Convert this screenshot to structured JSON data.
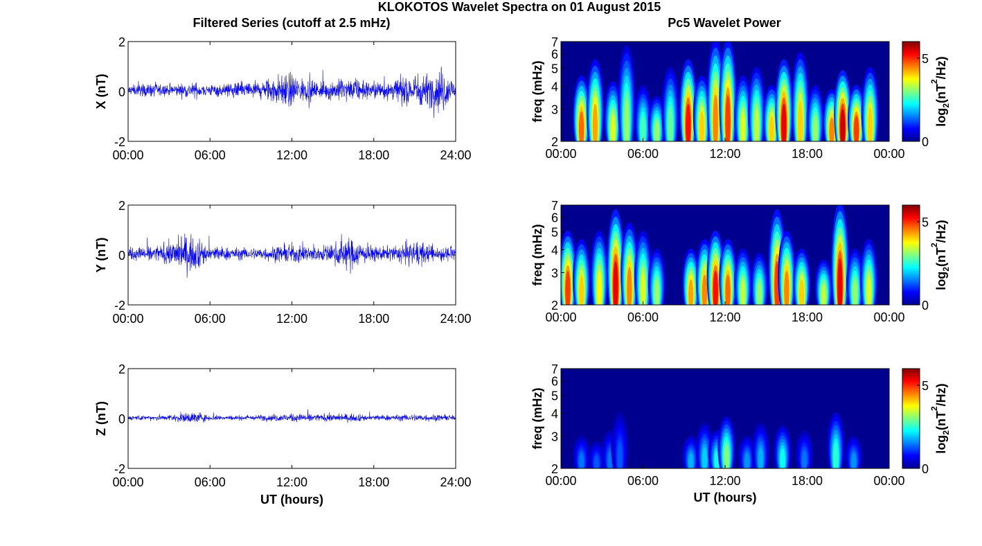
{
  "figure": {
    "title": "KLOKOTOS Wavelet Spectra on 01 August 2015",
    "left_title": "Filtered Series (cutoff at 2.5 mHz)",
    "right_title": "Pc5 Wavelet Power",
    "x_axis_label": "UT (hours)",
    "freq_label": "freq (mHz)",
    "colorbar_label_base": "log",
    "colorbar_label_sub": "2",
    "colorbar_label_unit": "(nT",
    "colorbar_label_sup": "2",
    "colorbar_label_tail": "/Hz)"
  },
  "colors": {
    "series_line": "#0000ff",
    "wavelet_background": "#00008f",
    "colormap": [
      "#00008f",
      "#0000ff",
      "#0080ff",
      "#00ffff",
      "#80ff80",
      "#ffff00",
      "#ff8000",
      "#ff0000",
      "#800000"
    ]
  },
  "chart_data": [
    {
      "type": "line",
      "panel": "X",
      "ylabel": "X (nT)",
      "xlabel": "",
      "xlim": [
        0,
        24
      ],
      "ylim": [
        -2,
        2
      ],
      "xticks": [
        "00:00",
        "06:00",
        "12:00",
        "18:00",
        "24:00"
      ],
      "yticks": [
        "-2",
        "0",
        "2"
      ],
      "series": [
        {
          "envelope_hours": [
            0,
            1,
            2,
            3,
            4,
            5,
            6,
            7,
            8,
            9,
            10,
            11,
            12,
            13,
            14,
            15,
            16,
            17,
            18,
            19,
            20,
            21,
            22,
            23,
            24
          ],
          "amplitude_nT": [
            0.25,
            0.3,
            0.35,
            0.3,
            0.35,
            0.4,
            0.3,
            0.35,
            0.4,
            0.45,
            0.55,
            0.8,
            0.85,
            0.55,
            0.45,
            0.5,
            0.6,
            0.5,
            0.45,
            0.55,
            0.6,
            0.9,
            0.8,
            1.2,
            0.4
          ],
          "offset_nT": 0.05
        }
      ]
    },
    {
      "type": "line",
      "panel": "Y",
      "ylabel": "Y (nT)",
      "xlabel": "",
      "xlim": [
        0,
        24
      ],
      "ylim": [
        -2,
        2
      ],
      "xticks": [
        "00:00",
        "06:00",
        "12:00",
        "18:00",
        "24:00"
      ],
      "yticks": [
        "-2",
        "0",
        "2"
      ],
      "series": [
        {
          "envelope_hours": [
            0,
            1,
            2,
            3,
            4,
            5,
            6,
            7,
            8,
            9,
            10,
            11,
            12,
            13,
            14,
            15,
            16,
            17,
            18,
            19,
            20,
            21,
            22,
            23,
            24
          ],
          "amplitude_nT": [
            0.3,
            0.35,
            0.4,
            0.55,
            1.0,
            0.8,
            0.45,
            0.35,
            0.3,
            0.3,
            0.35,
            0.4,
            0.5,
            0.45,
            0.4,
            0.5,
            0.8,
            0.6,
            0.4,
            0.35,
            0.5,
            0.7,
            0.45,
            0.4,
            0.3
          ],
          "offset_nT": 0.05
        }
      ]
    },
    {
      "type": "line",
      "panel": "Z",
      "ylabel": "Z (nT)",
      "xlabel": "UT (hours)",
      "xlim": [
        0,
        24
      ],
      "ylim": [
        -2,
        2
      ],
      "xticks": [
        "00:00",
        "06:00",
        "12:00",
        "18:00",
        "24:00"
      ],
      "yticks": [
        "-2",
        "0",
        "2"
      ],
      "series": [
        {
          "envelope_hours": [
            0,
            1,
            2,
            3,
            4,
            5,
            6,
            7,
            8,
            9,
            10,
            11,
            12,
            13,
            14,
            15,
            16,
            17,
            18,
            19,
            20,
            21,
            22,
            23,
            24
          ],
          "amplitude_nT": [
            0.12,
            0.12,
            0.15,
            0.15,
            0.25,
            0.3,
            0.15,
            0.12,
            0.12,
            0.12,
            0.15,
            0.2,
            0.2,
            0.2,
            0.18,
            0.2,
            0.2,
            0.18,
            0.15,
            0.15,
            0.15,
            0.2,
            0.18,
            0.15,
            0.12
          ],
          "offset_nT": 0.03
        }
      ]
    },
    {
      "type": "heatmap",
      "panel": "X",
      "ylabel": "freq (mHz)",
      "xlabel": "",
      "xlim": [
        0,
        24
      ],
      "ylim": [
        2,
        7
      ],
      "yscale": "log",
      "xticks": [
        "00:00",
        "06:00",
        "12:00",
        "18:00",
        "00:00"
      ],
      "yticks": [
        "2",
        "3",
        "4",
        "5",
        "6",
        "7"
      ],
      "colorbar_ticks": [
        "0",
        "5"
      ],
      "clim": [
        0,
        6
      ],
      "bursts": [
        {
          "t": 1.5,
          "power": 5.2,
          "top": 4.5
        },
        {
          "t": 2.5,
          "power": 4.8,
          "top": 5.5
        },
        {
          "t": 3.8,
          "power": 4.0,
          "top": 4.2
        },
        {
          "t": 4.8,
          "power": 3.5,
          "top": 6.5
        },
        {
          "t": 6.0,
          "power": 3.0,
          "top": 4.0
        },
        {
          "t": 7.0,
          "power": 3.5,
          "top": 3.5
        },
        {
          "t": 8.0,
          "power": 3.2,
          "top": 5.0
        },
        {
          "t": 9.3,
          "power": 5.8,
          "top": 5.5
        },
        {
          "t": 10.3,
          "power": 4.5,
          "top": 4.5
        },
        {
          "t": 11.3,
          "power": 5.0,
          "top": 7.0
        },
        {
          "t": 12.2,
          "power": 5.5,
          "top": 7.0
        },
        {
          "t": 13.3,
          "power": 4.0,
          "top": 4.5
        },
        {
          "t": 14.3,
          "power": 3.8,
          "top": 5.0
        },
        {
          "t": 15.4,
          "power": 4.5,
          "top": 4.0
        },
        {
          "t": 16.3,
          "power": 6.0,
          "top": 5.5
        },
        {
          "t": 17.5,
          "power": 4.5,
          "top": 6.0
        },
        {
          "t": 18.6,
          "power": 3.5,
          "top": 4.0
        },
        {
          "t": 19.8,
          "power": 5.0,
          "top": 3.8
        },
        {
          "t": 20.6,
          "power": 6.2,
          "top": 4.8
        },
        {
          "t": 21.6,
          "power": 5.5,
          "top": 4.0
        },
        {
          "t": 22.6,
          "power": 4.5,
          "top": 5.0
        }
      ]
    },
    {
      "type": "heatmap",
      "panel": "Y",
      "ylabel": "freq (mHz)",
      "xlabel": "",
      "xlim": [
        0,
        24
      ],
      "ylim": [
        2,
        7
      ],
      "yscale": "log",
      "xticks": [
        "00:00",
        "06:00",
        "12:00",
        "18:00",
        "00:00"
      ],
      "yticks": [
        "2",
        "3",
        "4",
        "5",
        "6",
        "7"
      ],
      "colorbar_ticks": [
        "0",
        "5"
      ],
      "clim": [
        0,
        6
      ],
      "bursts": [
        {
          "t": 0.5,
          "power": 5.5,
          "top": 5.0
        },
        {
          "t": 1.5,
          "power": 4.5,
          "top": 4.5
        },
        {
          "t": 2.8,
          "power": 4.2,
          "top": 5.0
        },
        {
          "t": 4.0,
          "power": 6.0,
          "top": 6.5
        },
        {
          "t": 5.0,
          "power": 5.0,
          "top": 5.5
        },
        {
          "t": 6.0,
          "power": 4.0,
          "top": 5.0
        },
        {
          "t": 7.0,
          "power": 3.5,
          "top": 4.0
        },
        {
          "t": 9.5,
          "power": 4.8,
          "top": 4.0
        },
        {
          "t": 10.5,
          "power": 5.0,
          "top": 4.5
        },
        {
          "t": 11.3,
          "power": 5.8,
          "top": 5.0
        },
        {
          "t": 12.2,
          "power": 5.2,
          "top": 4.5
        },
        {
          "t": 13.3,
          "power": 3.8,
          "top": 4.0
        },
        {
          "t": 14.5,
          "power": 3.5,
          "top": 3.8
        },
        {
          "t": 15.8,
          "power": 5.5,
          "top": 6.5
        },
        {
          "t": 16.5,
          "power": 5.0,
          "top": 5.0
        },
        {
          "t": 17.6,
          "power": 4.5,
          "top": 4.0
        },
        {
          "t": 19.2,
          "power": 3.8,
          "top": 3.5
        },
        {
          "t": 20.4,
          "power": 6.0,
          "top": 7.0
        },
        {
          "t": 21.5,
          "power": 3.5,
          "top": 4.0
        },
        {
          "t": 22.5,
          "power": 4.0,
          "top": 4.5
        }
      ]
    },
    {
      "type": "heatmap",
      "panel": "Z",
      "ylabel": "freq (mHz)",
      "xlabel": "UT (hours)",
      "xlim": [
        0,
        24
      ],
      "ylim": [
        2,
        7
      ],
      "yscale": "log",
      "xticks": [
        "00:00",
        "06:00",
        "12:00",
        "18:00",
        "00:00"
      ],
      "yticks": [
        "2",
        "3",
        "4",
        "5",
        "6",
        "7"
      ],
      "colorbar_ticks": [
        "0",
        "5"
      ],
      "clim": [
        0,
        6
      ],
      "bursts": [
        {
          "t": 1.5,
          "power": 1.6,
          "top": 3.0
        },
        {
          "t": 2.6,
          "power": 1.4,
          "top": 2.8
        },
        {
          "t": 3.6,
          "power": 1.6,
          "top": 3.2
        },
        {
          "t": 4.3,
          "power": 1.4,
          "top": 4.0
        },
        {
          "t": 9.5,
          "power": 2.0,
          "top": 3.0
        },
        {
          "t": 10.5,
          "power": 2.2,
          "top": 3.5
        },
        {
          "t": 11.4,
          "power": 2.6,
          "top": 3.2
        },
        {
          "t": 12.1,
          "power": 3.4,
          "top": 3.8
        },
        {
          "t": 13.6,
          "power": 1.8,
          "top": 3.0
        },
        {
          "t": 14.6,
          "power": 2.0,
          "top": 3.5
        },
        {
          "t": 16.2,
          "power": 2.6,
          "top": 3.4
        },
        {
          "t": 17.8,
          "power": 1.6,
          "top": 3.2
        },
        {
          "t": 20.1,
          "power": 2.8,
          "top": 4.0
        },
        {
          "t": 21.4,
          "power": 1.8,
          "top": 3.0
        }
      ]
    }
  ]
}
